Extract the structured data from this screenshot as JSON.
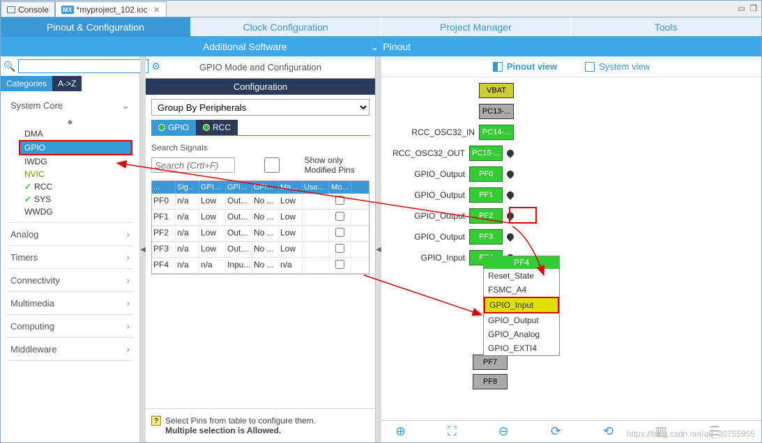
{
  "tabs": {
    "console": "Console",
    "file": "*myproject_102.ioc"
  },
  "maintabs": [
    "Pinout & Configuration",
    "Clock Configuration",
    "Project Manager",
    "Tools"
  ],
  "subbar": {
    "additional": "Additional Software",
    "pinout": "Pinout"
  },
  "cattabs": {
    "cat": "Categories",
    "az": "A->Z"
  },
  "categories": {
    "syscore": "System Core",
    "items": [
      "DMA",
      "GPIO",
      "IWDG",
      "NVIC",
      "RCC",
      "SYS",
      "WWDG"
    ],
    "analog": "Analog",
    "timers": "Timers",
    "connectivity": "Connectivity",
    "multimedia": "Multimedia",
    "computing": "Computing",
    "middleware": "Middleware"
  },
  "mid": {
    "head": "GPIO Mode and Configuration",
    "conf": "Configuration",
    "groupby": "Group By Peripherals",
    "ptab1": "GPIO",
    "ptab2": "RCC",
    "searchsig": "Search Signals",
    "searchph": "Search (Crtl+F)",
    "showmod": "Show only Modified Pins",
    "cols": [
      "...",
      "Sig...",
      "GPI...",
      "GPI...",
      "GPI...",
      "Ma...",
      "Use...",
      "Mo..."
    ],
    "rows": [
      [
        "PF0",
        "n/a",
        "Low",
        "Out...",
        "No ...",
        "Low",
        "",
        ""
      ],
      [
        "PF1",
        "n/a",
        "Low",
        "Out...",
        "No ...",
        "Low",
        "",
        ""
      ],
      [
        "PF2",
        "n/a",
        "Low",
        "Out...",
        "No ...",
        "Low",
        "",
        ""
      ],
      [
        "PF3",
        "n/a",
        "Low",
        "Out...",
        "No ...",
        "Low",
        "",
        ""
      ],
      [
        "PF4",
        "n/a",
        "n/a",
        "Inpu...",
        "No ...",
        "n/a",
        "",
        ""
      ]
    ],
    "hint1": "Select Pins from table to configure them.",
    "hint2": "Multiple selection is Allowed."
  },
  "views": {
    "pinout": "Pinout view",
    "system": "System view"
  },
  "pins": [
    {
      "lbl": "",
      "box": "VBAT",
      "cls": "y"
    },
    {
      "lbl": "",
      "box": "PC13-...",
      "cls": "gr"
    },
    {
      "lbl": "RCC_OSC32_IN",
      "box": "PC14-...",
      "cls": "g"
    },
    {
      "lbl": "RCC_OSC32_OUT",
      "box": "PC15-...",
      "cls": "g"
    },
    {
      "lbl": "GPIO_Output",
      "box": "PF0",
      "cls": "g"
    },
    {
      "lbl": "GPIO_Output",
      "box": "PF1",
      "cls": "g"
    },
    {
      "lbl": "GPIO_Output",
      "box": "PF2",
      "cls": "g"
    },
    {
      "lbl": "GPIO_Output",
      "box": "PF3",
      "cls": "g"
    },
    {
      "lbl": "GPIO_Input",
      "box": "PF4",
      "cls": "g"
    }
  ],
  "extra_pins": [
    {
      "box": "PF7",
      "cls": "gr"
    },
    {
      "box": "PF8",
      "cls": "gr"
    }
  ],
  "ctx": {
    "head": "PF4",
    "items": [
      "Reset_State",
      "FSMC_A4",
      "GPIO_Input",
      "GPIO_Output",
      "GPIO_Analog",
      "GPIO_EXTI4"
    ],
    "hi": 2
  },
  "watermark": "https://blog.csdn.net/qq_30755955"
}
